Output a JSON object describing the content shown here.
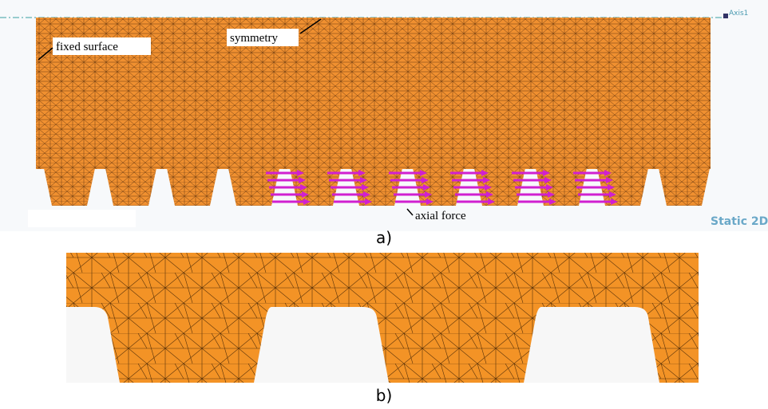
{
  "panel_a": {
    "labels": {
      "fixed_surface": "fixed surface",
      "symmetry": "symmetry",
      "axial_force": "axial force"
    },
    "axis_label": "Axis1",
    "view_label": "Static 2D",
    "caption": "a)"
  },
  "panel_b": {
    "caption": "b)"
  }
}
